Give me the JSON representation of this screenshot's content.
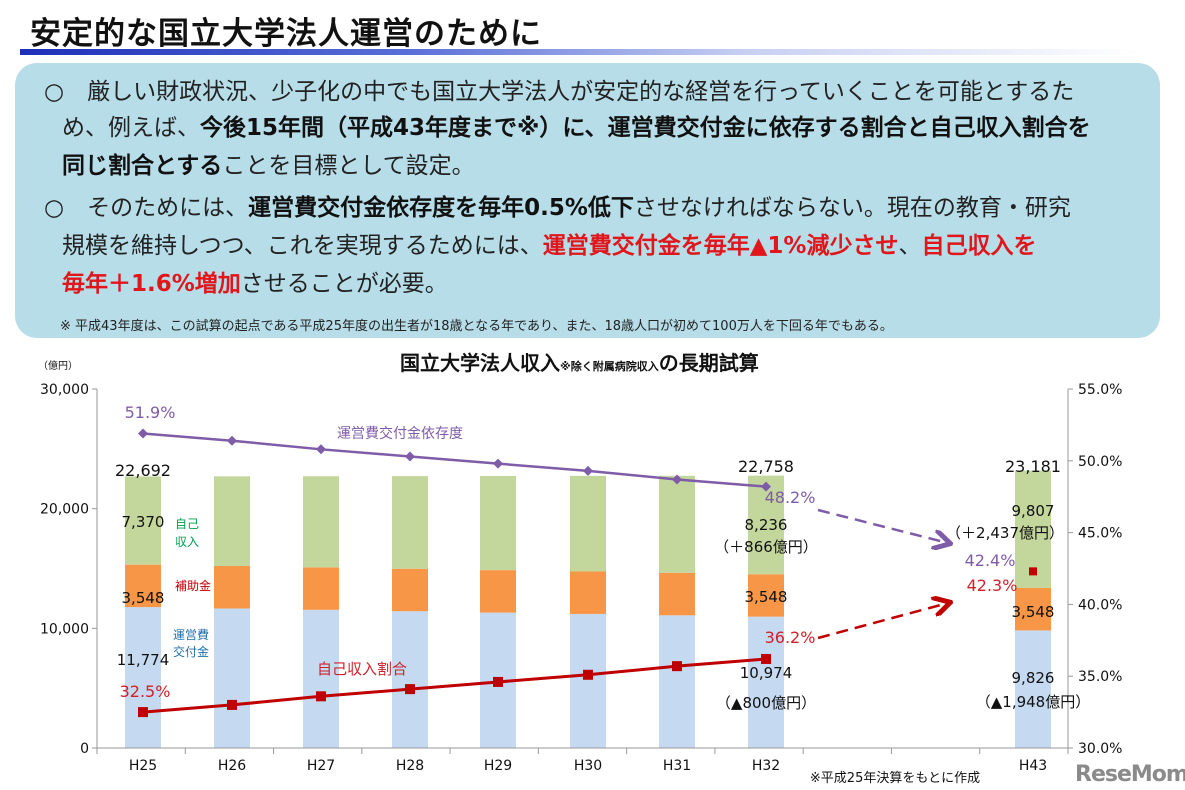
{
  "title": "安定的な国立大学法人運営のために",
  "box": {
    "l1": "○　厳しい財政状況、少子化の中でも国立大学法人が安定的な経営を行っていくことを可能とするた",
    "l2a": "め、例えば、",
    "l2b": "今後15年間（平成43年度まで※）に、運営費交付金に依存する割合と自己収入割合を",
    "l3a": "同じ割合とする",
    "l3b": "ことを目標として設定。",
    "l4a": "○　そのためには、",
    "l4b": "運営費交付金依存度を毎年0.5%低下",
    "l4c": "させなければならない。現在の教育・研究",
    "l5a": "規模を維持しつつ、これを実現するためには、",
    "l5b": "運営費交付金を毎年▲1%減少させ",
    "l5c": "、",
    "l5d": "自己収入を",
    "l6a": "毎年＋1.6%増加",
    "l6b": "させることが必要。",
    "note": "※ 平成43年度は、この試算の起点である平成25年度の出生者が18歳となる年であり、また、18歳人口が初めて100万人を下回る年でもある。"
  },
  "logo": "ReseMom",
  "chart_data": {
    "type": "bar",
    "title": "国立大学法人収入",
    "title_note": "※除く附属病院収入",
    "title_suffix": "の長期試算",
    "y_unit": "（億円）",
    "ylim": [
      0,
      30000
    ],
    "y_ticks": [
      "0",
      "10,000",
      "20,000",
      "30,000"
    ],
    "y2lim": [
      30,
      55
    ],
    "y2_ticks": [
      "30.0%",
      "35.0%",
      "40.0%",
      "45.0%",
      "50.0%",
      "55.0%"
    ],
    "categories": [
      "H25",
      "H26",
      "H27",
      "H28",
      "H29",
      "H30",
      "H31",
      "H32",
      "H43"
    ],
    "stacked": true,
    "series": [
      {
        "name": "運営費交付金",
        "color": "#c5d9f1",
        "label_color": "#1f6fa8",
        "values": [
          11774,
          11660,
          11545,
          11431,
          11317,
          11203,
          11088,
          10974,
          9826
        ]
      },
      {
        "name": "補助金",
        "color": "#f79646",
        "label_color": "#c00000",
        "values": [
          3548,
          3548,
          3548,
          3548,
          3548,
          3548,
          3548,
          3548,
          3548
        ]
      },
      {
        "name": "自己収入",
        "color": "#c3d69b",
        "label_color": "#00a050",
        "values": [
          7370,
          7494,
          7617,
          7741,
          7865,
          7988,
          8112,
          8236,
          9807
        ]
      }
    ],
    "lines": [
      {
        "name": "運営費交付金依存度",
        "axis": "right",
        "color": "#7f5ca8",
        "values": [
          51.9,
          51.4,
          50.8,
          50.3,
          49.8,
          49.3,
          48.7,
          48.2,
          null
        ],
        "projection": 42.4
      },
      {
        "name": "自己収入割合",
        "axis": "right",
        "color": "#c00000",
        "values": [
          32.5,
          33.0,
          33.6,
          34.1,
          34.6,
          35.1,
          35.7,
          36.2,
          42.3
        ],
        "projection": 42.3
      }
    ],
    "data_labels": {
      "totals": {
        "H25": "22,692",
        "H32": "22,758",
        "H43": "23,181"
      },
      "H25": {
        "gov": "11,774",
        "sub": "3,548",
        "self": "7,370",
        "dep": "51.9%",
        "ratio": "32.5%"
      },
      "H32": {
        "gov": "10,974",
        "gov_change": "（▲800億円）",
        "sub": "3,548",
        "self": "8,236",
        "self_change": "（＋866億円）",
        "dep": "48.2%",
        "ratio": "36.2%"
      },
      "H43": {
        "gov": "9,826",
        "gov_change": "（▲1,948億円）",
        "sub": "3,548",
        "self": "9,807",
        "self_change": "（＋2,437億円）",
        "dep": "42.4%",
        "ratio": "42.3%"
      }
    },
    "series_label_lines": {
      "self": [
        "自己",
        "収入"
      ],
      "gov": [
        "運営費",
        "交付金"
      ]
    },
    "source_note": "※平成25年決算をもとに作成"
  }
}
